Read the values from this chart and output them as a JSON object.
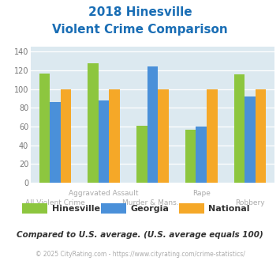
{
  "title_line1": "2018 Hinesville",
  "title_line2": "Violent Crime Comparison",
  "categories_top": [
    "",
    "Aggravated Assault",
    "",
    "Rape",
    ""
  ],
  "categories_bottom": [
    "All Violent Crime",
    "",
    "Murder & Mans...",
    "",
    "Robbery"
  ],
  "series": {
    "Hinesville": [
      117,
      128,
      61,
      57,
      116
    ],
    "Georgia": [
      86,
      88,
      124,
      60,
      92
    ],
    "National": [
      100,
      100,
      100,
      100,
      100
    ]
  },
  "colors": {
    "Hinesville": "#8dc63f",
    "Georgia": "#4a90d9",
    "National": "#f5a828"
  },
  "ylim": [
    0,
    145
  ],
  "yticks": [
    0,
    20,
    40,
    60,
    80,
    100,
    120,
    140
  ],
  "plot_bg": "#dce9f0",
  "title_color": "#1a6eb5",
  "footer_text": "Compared to U.S. average. (U.S. average equals 100)",
  "copyright_text": "© 2025 CityRating.com - https://www.cityrating.com/crime-statistics/",
  "footer_color": "#333333",
  "copyright_color": "#aaaaaa",
  "legend_text_color": "#333333"
}
